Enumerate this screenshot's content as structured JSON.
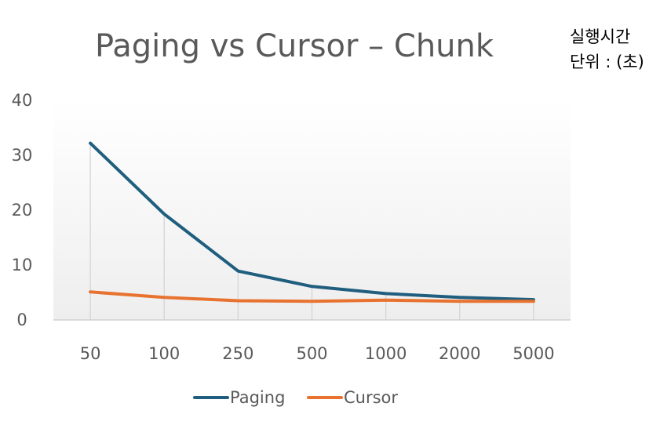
{
  "chart_data": {
    "type": "line",
    "title": "Paging  vs  Cursor  –  Chunk",
    "note_lines": [
      "실행시간",
      "단위 : (초)"
    ],
    "categories": [
      "50",
      "100",
      "250",
      "500",
      "1000",
      "2000",
      "5000"
    ],
    "ylim": [
      0,
      40
    ],
    "yticks": [
      0,
      10,
      20,
      30,
      40
    ],
    "grid": "vertical drop lines",
    "legend_position": "bottom",
    "series": [
      {
        "name": "Paging",
        "color": "#1F5E7E",
        "values": [
          32.2,
          19.3,
          8.9,
          6.1,
          4.8,
          4.1,
          3.7
        ]
      },
      {
        "name": "Cursor",
        "color": "#E8722F",
        "values": [
          5.1,
          4.1,
          3.5,
          3.4,
          3.6,
          3.4,
          3.4
        ]
      }
    ]
  }
}
